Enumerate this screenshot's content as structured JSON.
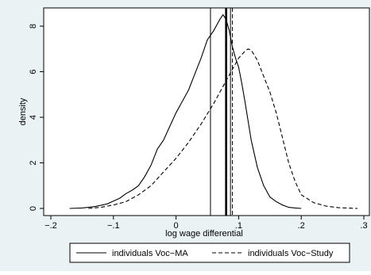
{
  "chart_data": {
    "type": "line",
    "title": "",
    "xlabel": "log wage differential",
    "ylabel": "density",
    "xlim": [
      -0.2,
      0.3
    ],
    "ylim": [
      0,
      8.8
    ],
    "xticks": [
      -0.2,
      -0.1,
      0,
      0.1,
      0.2,
      0.3
    ],
    "xtick_labels": [
      "−.2",
      "−.1",
      "0",
      ".1",
      ".2",
      ".3"
    ],
    "yticks": [
      0,
      2,
      4,
      6,
      8
    ],
    "ytick_labels": [
      "0",
      "2",
      "4",
      "6",
      "8"
    ],
    "grid": false,
    "legend_position": "bottom",
    "series": [
      {
        "name": "individuals Voc−MA",
        "style": "solid",
        "color": "#000000",
        "x": [
          -0.17,
          -0.15,
          -0.13,
          -0.11,
          -0.09,
          -0.08,
          -0.07,
          -0.06,
          -0.05,
          -0.04,
          -0.03,
          -0.02,
          -0.01,
          0.0,
          0.01,
          0.02,
          0.03,
          0.04,
          0.05,
          0.06,
          0.07,
          0.075,
          0.08,
          0.085,
          0.09,
          0.095,
          0.1,
          0.105,
          0.11,
          0.12,
          0.13,
          0.14,
          0.15,
          0.16,
          0.17,
          0.18,
          0.19,
          0.2
        ],
        "y": [
          0.0,
          0.02,
          0.08,
          0.2,
          0.45,
          0.65,
          0.8,
          1.0,
          1.4,
          1.9,
          2.6,
          3.0,
          3.6,
          4.2,
          4.7,
          5.2,
          5.9,
          6.6,
          7.4,
          7.8,
          8.3,
          8.5,
          8.3,
          7.8,
          7.1,
          6.6,
          6.2,
          5.5,
          4.7,
          3.0,
          1.8,
          1.0,
          0.5,
          0.3,
          0.15,
          0.05,
          0.02,
          0.0
        ]
      },
      {
        "name": "individuals Voc−Study",
        "style": "dashed",
        "color": "#000000",
        "x": [
          -0.14,
          -0.12,
          -0.1,
          -0.08,
          -0.06,
          -0.04,
          -0.02,
          0.0,
          0.02,
          0.04,
          0.06,
          0.08,
          0.09,
          0.1,
          0.11,
          0.115,
          0.12,
          0.13,
          0.14,
          0.15,
          0.16,
          0.17,
          0.18,
          0.19,
          0.2,
          0.22,
          0.24,
          0.26,
          0.28,
          0.29
        ],
        "y": [
          0.0,
          0.05,
          0.15,
          0.3,
          0.6,
          1.0,
          1.6,
          2.2,
          2.9,
          3.7,
          4.6,
          5.6,
          6.1,
          6.6,
          6.9,
          7.0,
          6.95,
          6.5,
          5.8,
          5.1,
          4.2,
          3.1,
          2.0,
          1.2,
          0.6,
          0.25,
          0.1,
          0.03,
          0.01,
          0.0
        ]
      }
    ],
    "reference_lines": [
      {
        "x": 0.055,
        "style": "thin-solid"
      },
      {
        "x": 0.08,
        "style": "thick-solid"
      },
      {
        "x": 0.087,
        "style": "thin-solid"
      },
      {
        "x": 0.09,
        "style": "dashed"
      }
    ]
  },
  "colors": {
    "background": "#eaf2f3",
    "plot_area": "#ffffff",
    "line": "#000000"
  }
}
